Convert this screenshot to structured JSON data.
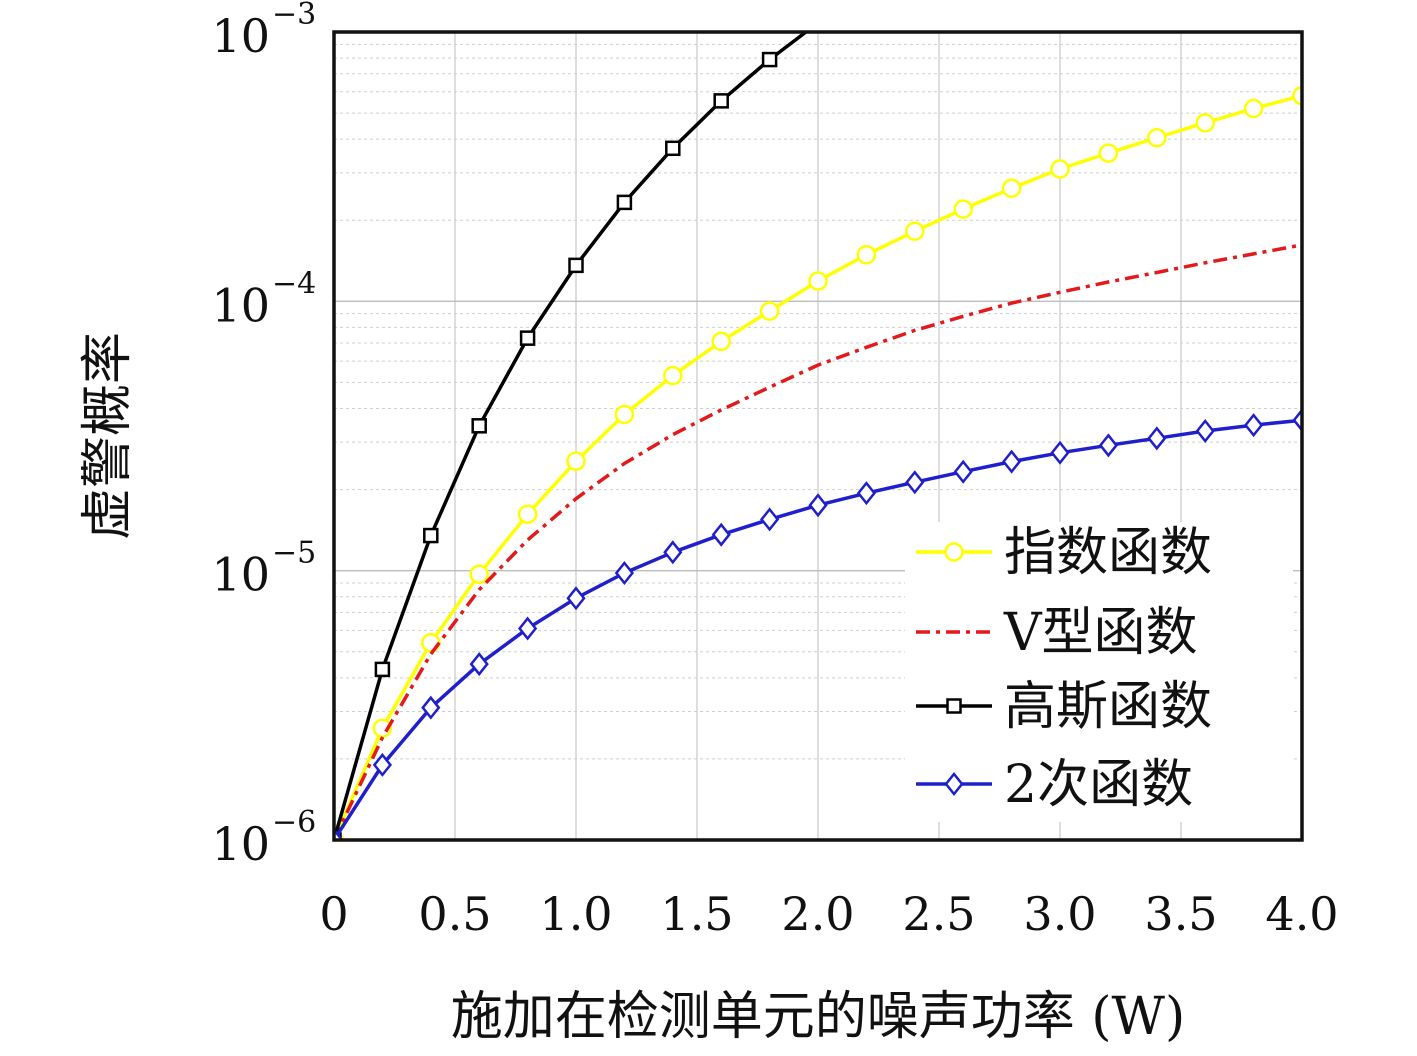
{
  "chart_data": {
    "type": "line",
    "title": "",
    "xlabel": "施加在检测单元的噪声功率 (W)",
    "ylabel": "虚警概率",
    "xlim": [
      0,
      4.0
    ],
    "ylim": [
      1e-06,
      0.001
    ],
    "yscale": "log",
    "grid": true,
    "legend_position": "bottom-right",
    "x_ticks": [
      "0",
      "0.5",
      "1.0",
      "1.5",
      "2.0",
      "2.5",
      "3.0",
      "3.5",
      "4.0"
    ],
    "y_ticks": [
      {
        "base": "10",
        "exp": "−6"
      },
      {
        "base": "10",
        "exp": "−5"
      },
      {
        "base": "10",
        "exp": "−4"
      },
      {
        "base": "10",
        "exp": "−3"
      }
    ],
    "series": [
      {
        "name": "指数函数",
        "color": "#ffff00",
        "line": "solid",
        "marker": "circle",
        "x": [
          0,
          0.2,
          0.4,
          0.6,
          0.8,
          1.0,
          1.2,
          1.4,
          1.6,
          1.8,
          2.0,
          2.2,
          2.4,
          2.6,
          2.8,
          3.0,
          3.2,
          3.4,
          3.6,
          3.8,
          4.0
        ],
        "y": [
          1e-06,
          2.6e-06,
          5.4e-06,
          9.7e-06,
          1.62e-05,
          2.55e-05,
          3.8e-05,
          5.3e-05,
          7.1e-05,
          9.2e-05,
          0.000119,
          0.000149,
          0.000182,
          0.00022,
          0.000263,
          0.00031,
          0.000355,
          0.000405,
          0.00046,
          0.00052,
          0.00058
        ]
      },
      {
        "name": "V型函数",
        "color": "#e31a1c",
        "line": "dashdot",
        "marker": "none",
        "x": [
          0,
          0.2,
          0.4,
          0.6,
          0.8,
          1.0,
          1.2,
          1.4,
          1.6,
          1.8,
          2.0,
          2.2,
          2.4,
          2.6,
          2.8,
          3.0,
          3.2,
          3.4,
          3.6,
          3.8,
          4.0
        ],
        "y": [
          1e-06,
          2.4e-06,
          4.9e-06,
          8.5e-06,
          1.3e-05,
          1.85e-05,
          2.5e-05,
          3.2e-05,
          3.95e-05,
          4.8e-05,
          5.8e-05,
          6.75e-05,
          7.8e-05,
          8.8e-05,
          9.85e-05,
          0.000108,
          0.000118,
          0.000128,
          0.000139,
          0.00015,
          0.000162
        ]
      },
      {
        "name": "高斯函数",
        "color": "#000000",
        "line": "solid",
        "marker": "square",
        "x": [
          0,
          0.2,
          0.4,
          0.6,
          0.8,
          1.0,
          1.2,
          1.4,
          1.6,
          1.8,
          1.95
        ],
        "y": [
          1e-06,
          4.3e-06,
          1.35e-05,
          3.45e-05,
          7.3e-05,
          0.000136,
          0.000233,
          0.00037,
          0.000555,
          0.00079,
          0.001
        ],
        "marker_count": 10
      },
      {
        "name": "2次函数",
        "color": "#1f1fcc",
        "line": "solid",
        "marker": "diamond",
        "x": [
          0,
          0.2,
          0.4,
          0.6,
          0.8,
          1.0,
          1.2,
          1.4,
          1.6,
          1.8,
          2.0,
          2.2,
          2.4,
          2.6,
          2.8,
          3.0,
          3.2,
          3.4,
          3.6,
          3.8,
          4.0
        ],
        "y": [
          1e-06,
          1.9e-06,
          3.1e-06,
          4.5e-06,
          6.1e-06,
          7.9e-06,
          9.8e-06,
          1.17e-05,
          1.36e-05,
          1.55e-05,
          1.75e-05,
          1.94e-05,
          2.13e-05,
          2.33e-05,
          2.54e-05,
          2.74e-05,
          2.92e-05,
          3.1e-05,
          3.3e-05,
          3.47e-05,
          3.62e-05
        ]
      }
    ]
  }
}
